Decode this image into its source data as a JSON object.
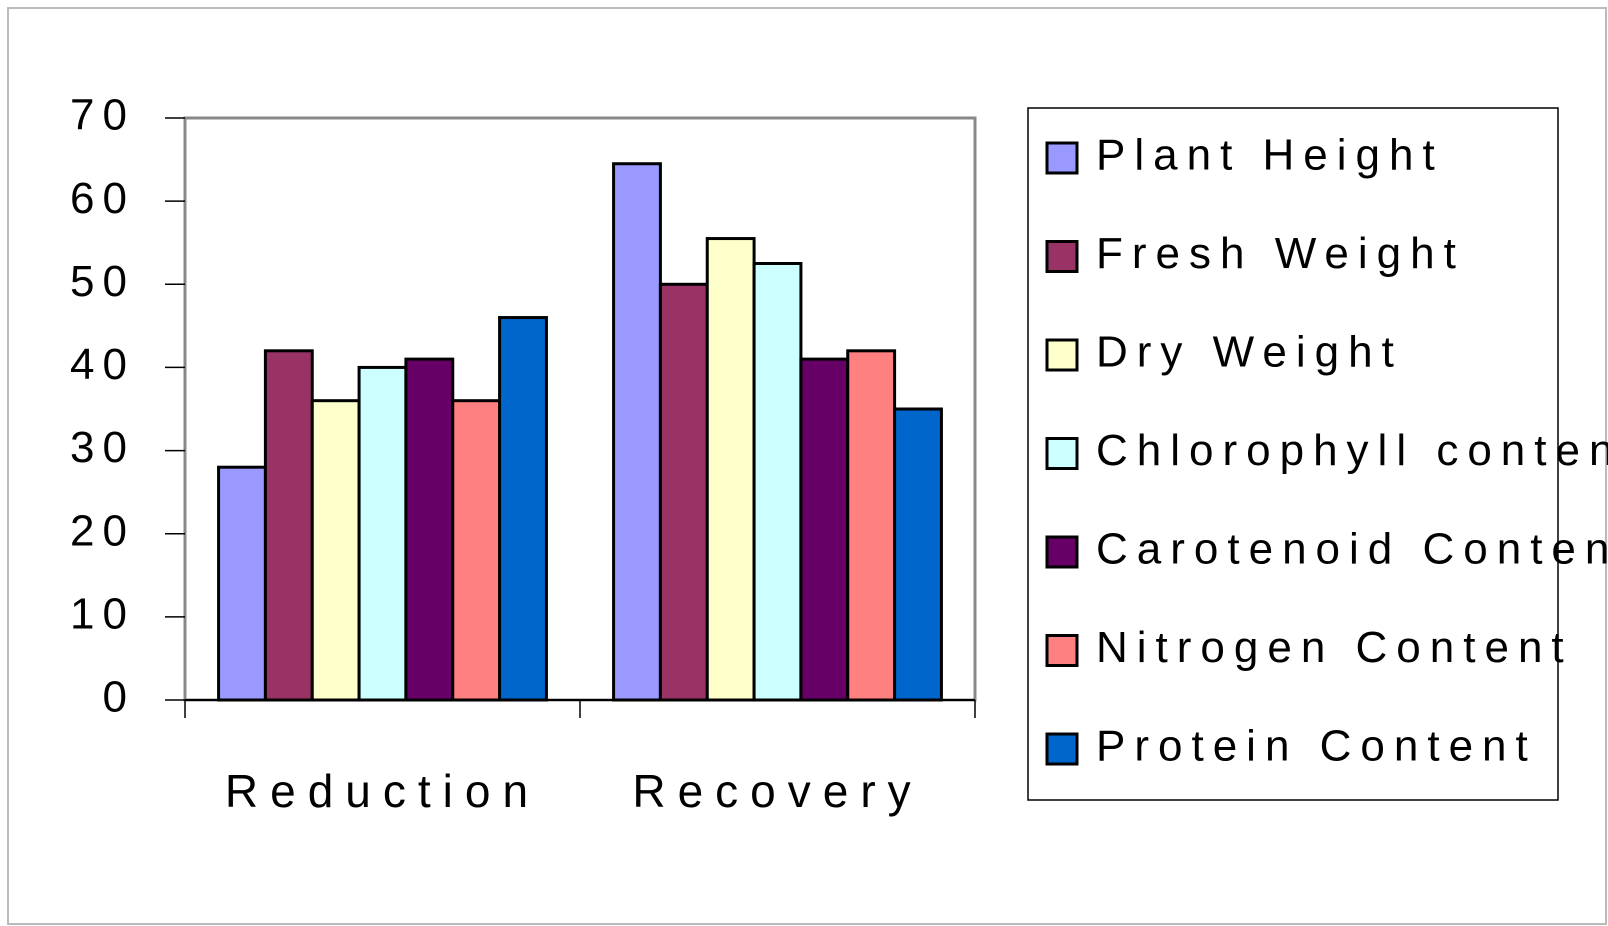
{
  "chart_data": {
    "type": "bar",
    "categories": [
      "Reduction",
      "Recovery"
    ],
    "series": [
      {
        "name": "Plant Height",
        "color": "#9999ff",
        "values": [
          28,
          64.5
        ]
      },
      {
        "name": "Fresh Weight",
        "color": "#993366",
        "values": [
          42,
          50
        ]
      },
      {
        "name": "Dry Weight",
        "color": "#ffffcc",
        "values": [
          36,
          55.5
        ]
      },
      {
        "name": "Chlorophyll content",
        "color": "#ccffff",
        "values": [
          40,
          52.5
        ]
      },
      {
        "name": "Carotenoid Content",
        "color": "#660066",
        "values": [
          41,
          41
        ]
      },
      {
        "name": "Nitrogen Content",
        "color": "#ff8080",
        "values": [
          36,
          42
        ]
      },
      {
        "name": "Protein Content",
        "color": "#0066cc",
        "values": [
          46,
          35
        ]
      }
    ],
    "ylim": [
      0,
      70
    ],
    "yticks": [
      0,
      10,
      20,
      30,
      40,
      50,
      60,
      70
    ],
    "legend": "right"
  }
}
